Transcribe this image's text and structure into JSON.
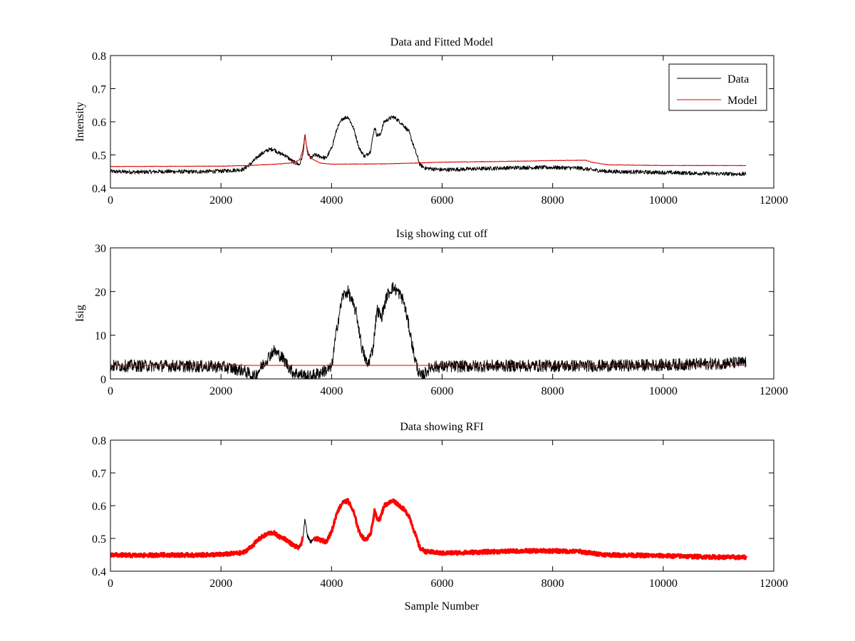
{
  "chart_data": [
    {
      "type": "line",
      "title": "Data and Fitted Model",
      "xlabel": "",
      "ylabel": "Intensity",
      "xlim": [
        0,
        12000
      ],
      "ylim": [
        0.4,
        0.8
      ],
      "xticks": [
        0,
        2000,
        4000,
        6000,
        8000,
        10000,
        12000
      ],
      "yticks": [
        0.4,
        0.5,
        0.6,
        0.7,
        0.8
      ],
      "xtick_labels": [
        "0",
        "2000",
        "4000",
        "6000",
        "8000",
        "10000",
        "12000"
      ],
      "ytick_labels": [
        "0.4",
        "0.5",
        "0.6",
        "0.7",
        "0.8"
      ],
      "legend": {
        "position": "top-right",
        "entries": [
          "Data",
          "Model"
        ]
      },
      "series": [
        {
          "name": "Data",
          "color": "#000000",
          "noise": 0.006,
          "x": [
            0,
            500,
            1000,
            1500,
            2000,
            2400,
            2550,
            2700,
            2850,
            2950,
            3050,
            3150,
            3300,
            3420,
            3480,
            3520,
            3560,
            3620,
            3700,
            3800,
            3900,
            4000,
            4100,
            4200,
            4300,
            4400,
            4500,
            4600,
            4700,
            4780,
            4820,
            4880,
            4950,
            5050,
            5120,
            5200,
            5300,
            5400,
            5500,
            5600,
            5700,
            6000,
            7000,
            7500,
            8000,
            8500,
            8700,
            9000,
            10000,
            11000,
            11500
          ],
          "y": [
            0.45,
            0.448,
            0.45,
            0.449,
            0.451,
            0.456,
            0.475,
            0.5,
            0.515,
            0.518,
            0.505,
            0.5,
            0.48,
            0.47,
            0.5,
            0.56,
            0.51,
            0.49,
            0.5,
            0.495,
            0.49,
            0.52,
            0.58,
            0.61,
            0.615,
            0.58,
            0.52,
            0.495,
            0.51,
            0.585,
            0.56,
            0.56,
            0.6,
            0.61,
            0.615,
            0.605,
            0.59,
            0.57,
            0.52,
            0.47,
            0.46,
            0.455,
            0.46,
            0.462,
            0.462,
            0.46,
            0.455,
            0.45,
            0.447,
            0.443,
            0.442
          ]
        },
        {
          "name": "Model",
          "color": "#dd0000",
          "noise": 0.0008,
          "x": [
            0,
            2000,
            2500,
            3000,
            3300,
            3420,
            3480,
            3520,
            3560,
            3620,
            3800,
            4000,
            5000,
            6000,
            7000,
            8000,
            8600,
            8700,
            9000,
            10000,
            11500
          ],
          "y": [
            0.465,
            0.466,
            0.468,
            0.472,
            0.476,
            0.485,
            0.515,
            0.56,
            0.51,
            0.49,
            0.475,
            0.472,
            0.473,
            0.478,
            0.48,
            0.483,
            0.484,
            0.478,
            0.47,
            0.468,
            0.468
          ]
        }
      ]
    },
    {
      "type": "line",
      "title": "Isig showing cut off",
      "xlabel": "",
      "ylabel": "Isig",
      "xlim": [
        0,
        12000
      ],
      "ylim": [
        0,
        30
      ],
      "xticks": [
        0,
        2000,
        4000,
        6000,
        8000,
        10000,
        12000
      ],
      "yticks": [
        0,
        10,
        20,
        30
      ],
      "xtick_labels": [
        "0",
        "2000",
        "4000",
        "6000",
        "8000",
        "10000",
        "12000"
      ],
      "ytick_labels": [
        "0",
        "10",
        "20",
        "30"
      ],
      "series": [
        {
          "name": "Isig",
          "color": "#000000",
          "noise": 1.4,
          "x": [
            0,
            1000,
            2000,
            2400,
            2600,
            2800,
            2950,
            3100,
            3300,
            3600,
            3800,
            4000,
            4100,
            4200,
            4300,
            4450,
            4550,
            4650,
            4750,
            4820,
            4900,
            5000,
            5100,
            5200,
            5300,
            5400,
            5500,
            5600,
            5650,
            5800,
            7000,
            8000,
            9000,
            10000,
            11000,
            11500
          ],
          "y": [
            3,
            3,
            2.8,
            2,
            0.5,
            4,
            6.5,
            5,
            1.5,
            0.5,
            1.5,
            2.5,
            12,
            19,
            20,
            15,
            7,
            3,
            7,
            16,
            14,
            19,
            21,
            20,
            18,
            12,
            5,
            0.5,
            0.8,
            2.8,
            3,
            3,
            3,
            3.2,
            3.5,
            3.8
          ]
        },
        {
          "name": "cut off",
          "color": "#dd0000",
          "noise": 0,
          "x": [
            0,
            11500
          ],
          "y": [
            3.1,
            3.1
          ]
        }
      ]
    },
    {
      "type": "line",
      "title": "Data showing RFI",
      "xlabel": "Sample Number",
      "ylabel": "",
      "xlim": [
        0,
        12000
      ],
      "ylim": [
        0.4,
        0.8
      ],
      "xticks": [
        0,
        2000,
        4000,
        6000,
        8000,
        10000,
        12000
      ],
      "yticks": [
        0.4,
        0.5,
        0.6,
        0.7,
        0.8
      ],
      "xtick_labels": [
        "0",
        "2000",
        "4000",
        "6000",
        "8000",
        "10000",
        "12000"
      ],
      "ytick_labels": [
        "0.4",
        "0.5",
        "0.6",
        "0.7",
        "0.8"
      ],
      "series": [
        {
          "name": "Data",
          "color": "#000000",
          "noise": 0.006,
          "x": [
            0,
            500,
            1000,
            1500,
            2000,
            2400,
            2550,
            2700,
            2850,
            2950,
            3050,
            3150,
            3300,
            3420,
            3480,
            3520,
            3560,
            3620,
            3700,
            3800,
            3900,
            4000,
            4100,
            4200,
            4300,
            4400,
            4500,
            4600,
            4700,
            4780,
            4820,
            4880,
            4950,
            5050,
            5120,
            5200,
            5300,
            5400,
            5500,
            5600,
            5700,
            6000,
            7000,
            7500,
            8000,
            8500,
            8700,
            9000,
            10000,
            11000,
            11500
          ],
          "y": [
            0.45,
            0.448,
            0.45,
            0.449,
            0.451,
            0.456,
            0.475,
            0.5,
            0.515,
            0.518,
            0.505,
            0.5,
            0.48,
            0.47,
            0.5,
            0.56,
            0.51,
            0.49,
            0.5,
            0.495,
            0.49,
            0.52,
            0.58,
            0.61,
            0.615,
            0.58,
            0.52,
            0.495,
            0.51,
            0.585,
            0.56,
            0.56,
            0.6,
            0.61,
            0.615,
            0.605,
            0.59,
            0.57,
            0.52,
            0.47,
            0.46,
            0.455,
            0.46,
            0.462,
            0.462,
            0.46,
            0.455,
            0.45,
            0.447,
            0.443,
            0.442
          ]
        },
        {
          "name": "RFI-flagged data",
          "color": "#ff0000",
          "noise": 0.006,
          "segments": [
            [
              0,
              3480
            ],
            [
              3680,
              11500
            ]
          ],
          "x": [
            0,
            500,
            1000,
            1500,
            2000,
            2400,
            2550,
            2700,
            2850,
            2950,
            3050,
            3150,
            3300,
            3420,
            3480,
            3700,
            3800,
            3900,
            4000,
            4100,
            4200,
            4300,
            4400,
            4500,
            4600,
            4700,
            4780,
            4820,
            4880,
            4950,
            5050,
            5120,
            5200,
            5300,
            5400,
            5500,
            5600,
            5700,
            6000,
            7000,
            7500,
            8000,
            8500,
            8700,
            9000,
            10000,
            11000,
            11500
          ],
          "y": [
            0.45,
            0.448,
            0.45,
            0.449,
            0.451,
            0.456,
            0.475,
            0.5,
            0.515,
            0.518,
            0.505,
            0.5,
            0.48,
            0.47,
            0.5,
            0.5,
            0.495,
            0.49,
            0.52,
            0.58,
            0.61,
            0.615,
            0.58,
            0.52,
            0.495,
            0.51,
            0.585,
            0.56,
            0.56,
            0.6,
            0.61,
            0.615,
            0.605,
            0.59,
            0.57,
            0.52,
            0.47,
            0.46,
            0.455,
            0.46,
            0.462,
            0.462,
            0.46,
            0.455,
            0.45,
            0.447,
            0.443,
            0.442
          ]
        }
      ]
    }
  ]
}
